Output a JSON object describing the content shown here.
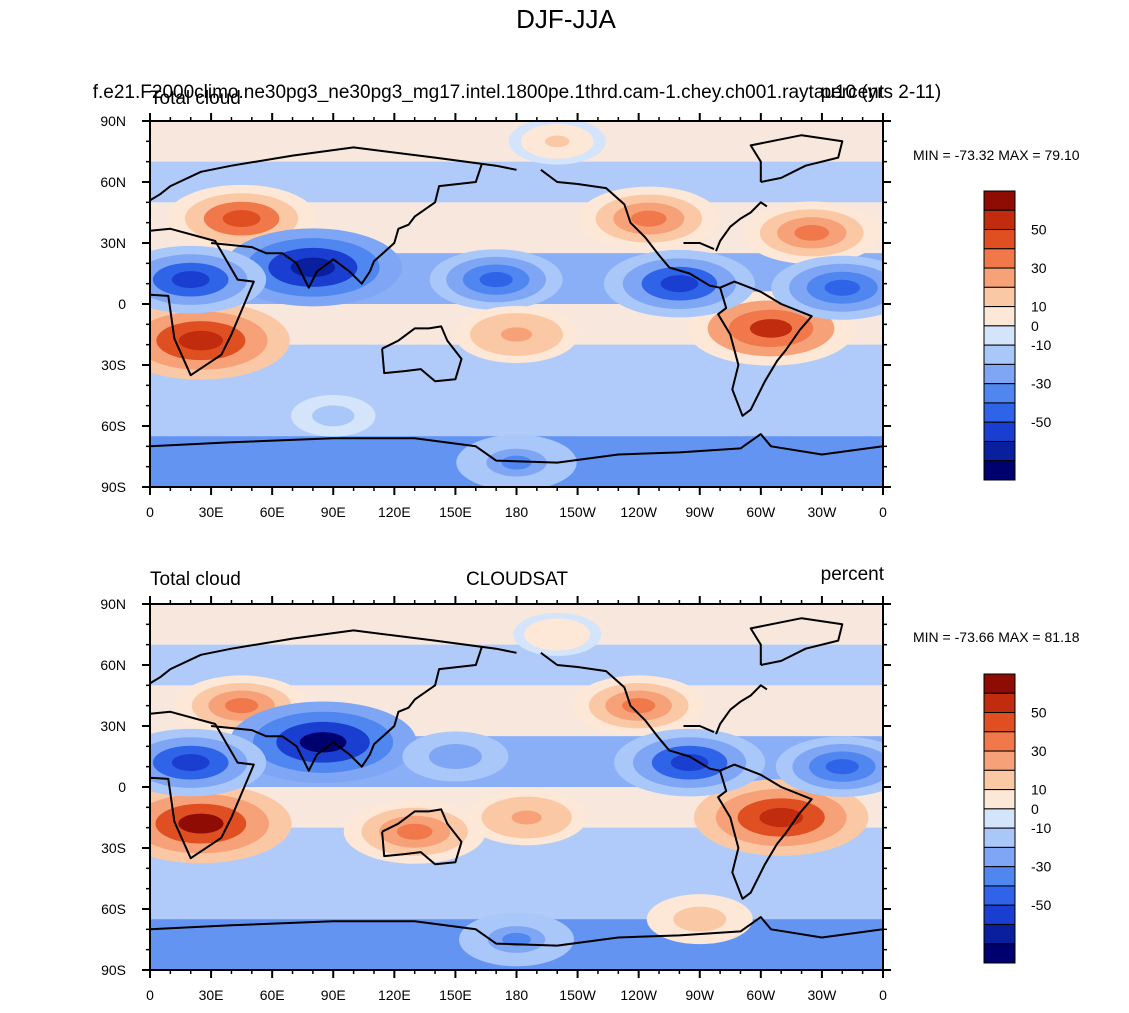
{
  "figure_title": "DJF-JJA",
  "chart_data": [
    {
      "type": "heatmap",
      "left_title": "Total cloud",
      "center_title": "f.e21.F2000climo.ne30pg3_ne30pg3_mg17.intel.1800pe.1thrd.cam-1.chey.ch001.raytau10 (yrs 2-11)",
      "right_title": "percent",
      "stats": "MIN = -73.32 MAX =  79.10",
      "min": -73.32,
      "max": 79.1,
      "x_ticks": [
        "0",
        "30E",
        "60E",
        "90E",
        "120E",
        "150E",
        "180",
        "150W",
        "120W",
        "90W",
        "60W",
        "30W",
        "0"
      ],
      "y_ticks": [
        "90N",
        "60N",
        "30N",
        "0",
        "30S",
        "60S",
        "90S"
      ],
      "colorbar_labels": [
        "50",
        "30",
        "10",
        "0",
        "-10",
        "-30",
        "-50"
      ],
      "xlim": [
        0,
        360
      ],
      "ylim": [
        -90,
        90
      ],
      "regions": [
        {
          "name": "eurasia-mid",
          "lon": 45,
          "lat": 42,
          "value": 45
        },
        {
          "name": "southern-africa",
          "lon": 25,
          "lat": -18,
          "value": 60
        },
        {
          "name": "south-america",
          "lon": 305,
          "lat": -12,
          "value": 55
        },
        {
          "name": "north-america-west",
          "lon": 245,
          "lat": 42,
          "value": 40
        },
        {
          "name": "north-atlantic",
          "lon": 325,
          "lat": 35,
          "value": 38
        },
        {
          "name": "indian-monsoon",
          "lon": 80,
          "lat": 18,
          "value": -60
        },
        {
          "name": "sahel",
          "lon": 20,
          "lat": 12,
          "value": -45
        },
        {
          "name": "west-pacific-itcz",
          "lon": 170,
          "lat": 12,
          "value": -35
        },
        {
          "name": "east-pacific-itcz",
          "lon": 260,
          "lat": 10,
          "value": -45
        },
        {
          "name": "atlantic-itcz",
          "lon": 340,
          "lat": 8,
          "value": -40
        },
        {
          "name": "south-pacific",
          "lon": 180,
          "lat": -15,
          "value": 30
        },
        {
          "name": "antarctica",
          "lon": 180,
          "lat": -78,
          "value": -28
        },
        {
          "name": "southern-ocean",
          "lon": 90,
          "lat": -55,
          "value": -8
        },
        {
          "name": "arctic",
          "lon": 200,
          "lat": 80,
          "value": 15
        }
      ]
    },
    {
      "type": "heatmap",
      "left_title": "Total cloud",
      "center_title": "CLOUDSAT",
      "right_title": "percent",
      "stats": "MIN = -73.66 MAX =  81.18",
      "min": -73.66,
      "max": 81.18,
      "x_ticks": [
        "0",
        "30E",
        "60E",
        "90E",
        "120E",
        "150E",
        "180",
        "150W",
        "120W",
        "90W",
        "60W",
        "30W",
        "0"
      ],
      "y_ticks": [
        "90N",
        "60N",
        "30N",
        "0",
        "30S",
        "60S",
        "90S"
      ],
      "colorbar_labels": [
        "50",
        "30",
        "10",
        "0",
        "-10",
        "-30",
        "-50"
      ],
      "xlim": [
        0,
        360
      ],
      "ylim": [
        -90,
        90
      ],
      "regions": [
        {
          "name": "eurasia-mid",
          "lon": 45,
          "lat": 40,
          "value": 35
        },
        {
          "name": "southern-africa",
          "lon": 25,
          "lat": -18,
          "value": 62
        },
        {
          "name": "south-america",
          "lon": 310,
          "lat": -15,
          "value": 58
        },
        {
          "name": "north-america-west",
          "lon": 240,
          "lat": 40,
          "value": 35
        },
        {
          "name": "australia",
          "lon": 130,
          "lat": -22,
          "value": 40
        },
        {
          "name": "indian-monsoon",
          "lon": 85,
          "lat": 22,
          "value": -65
        },
        {
          "name": "sahel",
          "lon": 20,
          "lat": 12,
          "value": -45
        },
        {
          "name": "west-pacific",
          "lon": 150,
          "lat": 15,
          "value": -20
        },
        {
          "name": "east-pacific-itcz",
          "lon": 265,
          "lat": 12,
          "value": -45
        },
        {
          "name": "atlantic-itcz",
          "lon": 340,
          "lat": 10,
          "value": -35
        },
        {
          "name": "south-pacific",
          "lon": 185,
          "lat": -15,
          "value": 28
        },
        {
          "name": "antarctica",
          "lon": 180,
          "lat": -75,
          "value": -25
        },
        {
          "name": "southern-ocean",
          "lon": 270,
          "lat": -65,
          "value": 20
        },
        {
          "name": "arctic",
          "lon": 200,
          "lat": 75,
          "value": 10
        }
      ]
    }
  ],
  "colormap": [
    "#00006e",
    "#0a1f9e",
    "#1a3fd0",
    "#2f64e8",
    "#4f86f0",
    "#7ea6f4",
    "#a9c7f8",
    "#d3e4fb",
    "#fde7d7",
    "#fbc8a6",
    "#f6a178",
    "#f0784b",
    "#e04f22",
    "#c02c0d",
    "#8f0c04"
  ]
}
